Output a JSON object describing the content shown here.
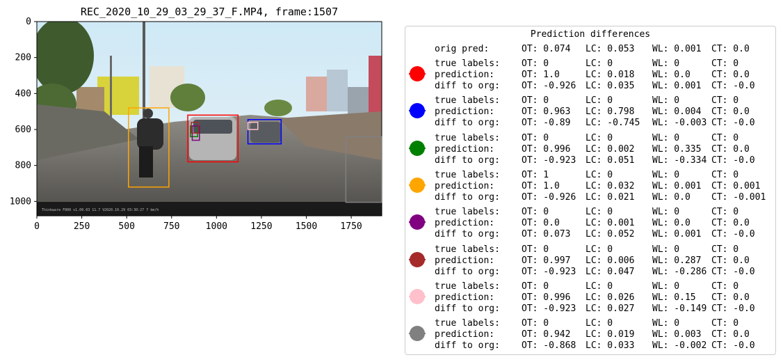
{
  "chart_data": {
    "type": "image-with-annotations",
    "title": "REC_2020_10_29_03_29_37_F.MP4, frame:1507",
    "xlim": [
      0,
      1920
    ],
    "ylim": [
      1080,
      0
    ],
    "x_ticks": [
      0,
      250,
      500,
      750,
      1000,
      1250,
      1500,
      1750
    ],
    "y_ticks": [
      0,
      200,
      400,
      600,
      800,
      1000
    ],
    "boxes": [
      {
        "color": "#ff0000",
        "x0": 840,
        "y0": 520,
        "x1": 1120,
        "y1": 780
      },
      {
        "color": "#0000ff",
        "x0": 1175,
        "y0": 545,
        "x1": 1360,
        "y1": 680
      },
      {
        "color": "#008000",
        "x0": 855,
        "y0": 580,
        "x1": 895,
        "y1": 640
      },
      {
        "color": "#ffa500",
        "x0": 510,
        "y0": 480,
        "x1": 735,
        "y1": 920
      },
      {
        "color": "#800080",
        "x0": 865,
        "y0": 580,
        "x1": 905,
        "y1": 660
      },
      {
        "color": "#a52a2a",
        "x0": 860,
        "y0": 560,
        "x1": 900,
        "y1": 620
      },
      {
        "color": "#ffc0cb",
        "x0": 1175,
        "y0": 560,
        "x1": 1230,
        "y1": 600
      },
      {
        "color": "#808080",
        "x0": 1720,
        "y0": 640,
        "x1": 1920,
        "y1": 1005
      }
    ],
    "legend": {
      "title": "Prediction differences",
      "orig_pred": {
        "label": "orig pred:",
        "OT": "OT: 0.074",
        "LC": "LC: 0.053",
        "WL": "WL: 0.001",
        "CT": "CT: 0.0"
      },
      "entries": [
        {
          "color": "#ff0000",
          "true": [
            "OT: 0",
            "LC: 0",
            "WL: 0",
            "CT: 0"
          ],
          "pred": [
            "OT: 1.0",
            "LC: 0.018",
            "WL: 0.0",
            "CT: 0.0"
          ],
          "diff": [
            "OT: -0.926",
            "LC: 0.035",
            "WL: 0.001",
            "CT: -0.0"
          ]
        },
        {
          "color": "#0000ff",
          "true": [
            "OT: 0",
            "LC: 0",
            "WL: 0",
            "CT: 0"
          ],
          "pred": [
            "OT: 0.963",
            "LC: 0.798",
            "WL: 0.004",
            "CT: 0.0"
          ],
          "diff": [
            "OT: -0.89",
            "LC: -0.745",
            "WL: -0.003",
            "CT: -0.0"
          ]
        },
        {
          "color": "#008000",
          "true": [
            "OT: 0",
            "LC: 0",
            "WL: 0",
            "CT: 0"
          ],
          "pred": [
            "OT: 0.996",
            "LC: 0.002",
            "WL: 0.335",
            "CT: 0.0"
          ],
          "diff": [
            "OT: -0.923",
            "LC: 0.051",
            "WL: -0.334",
            "CT: -0.0"
          ]
        },
        {
          "color": "#ffa500",
          "true": [
            "OT: 1",
            "LC: 0",
            "WL: 0",
            "CT: 0"
          ],
          "pred": [
            "OT: 1.0",
            "LC: 0.032",
            "WL: 0.001",
            "CT: 0.001"
          ],
          "diff": [
            "OT: -0.926",
            "LC: 0.021",
            "WL: 0.0",
            "CT: -0.001"
          ]
        },
        {
          "color": "#800080",
          "true": [
            "OT: 0",
            "LC: 0",
            "WL: 0",
            "CT: 0"
          ],
          "pred": [
            "OT: 0.0",
            "LC: 0.001",
            "WL: 0.0",
            "CT: 0.0"
          ],
          "diff": [
            "OT: 0.073",
            "LC: 0.052",
            "WL: 0.001",
            "CT: -0.0"
          ]
        },
        {
          "color": "#a52a2a",
          "true": [
            "OT: 0",
            "LC: 0",
            "WL: 0",
            "CT: 0"
          ],
          "pred": [
            "OT: 0.997",
            "LC: 0.006",
            "WL: 0.287",
            "CT: 0.0"
          ],
          "diff": [
            "OT: -0.923",
            "LC: 0.047",
            "WL: -0.286",
            "CT: -0.0"
          ]
        },
        {
          "color": "#ffc0cb",
          "true": [
            "OT: 0",
            "LC: 0",
            "WL: 0",
            "CT: 0"
          ],
          "pred": [
            "OT: 0.996",
            "LC: 0.026",
            "WL: 0.15",
            "CT: 0.0"
          ],
          "diff": [
            "OT: -0.923",
            "LC: 0.027",
            "WL: -0.149",
            "CT: -0.0"
          ]
        },
        {
          "color": "#808080",
          "true": [
            "OT: 0",
            "LC: 0",
            "WL: 0",
            "CT: 0"
          ],
          "pred": [
            "OT: 0.942",
            "LC: 0.019",
            "WL: 0.003",
            "CT: 0.0"
          ],
          "diff": [
            "OT: -0.868",
            "LC: 0.033",
            "WL: -0.002",
            "CT: -0.0"
          ]
        }
      ],
      "row_labels": {
        "true": "true labels:",
        "pred": "prediction:",
        "diff": "diff to org:"
      }
    }
  }
}
